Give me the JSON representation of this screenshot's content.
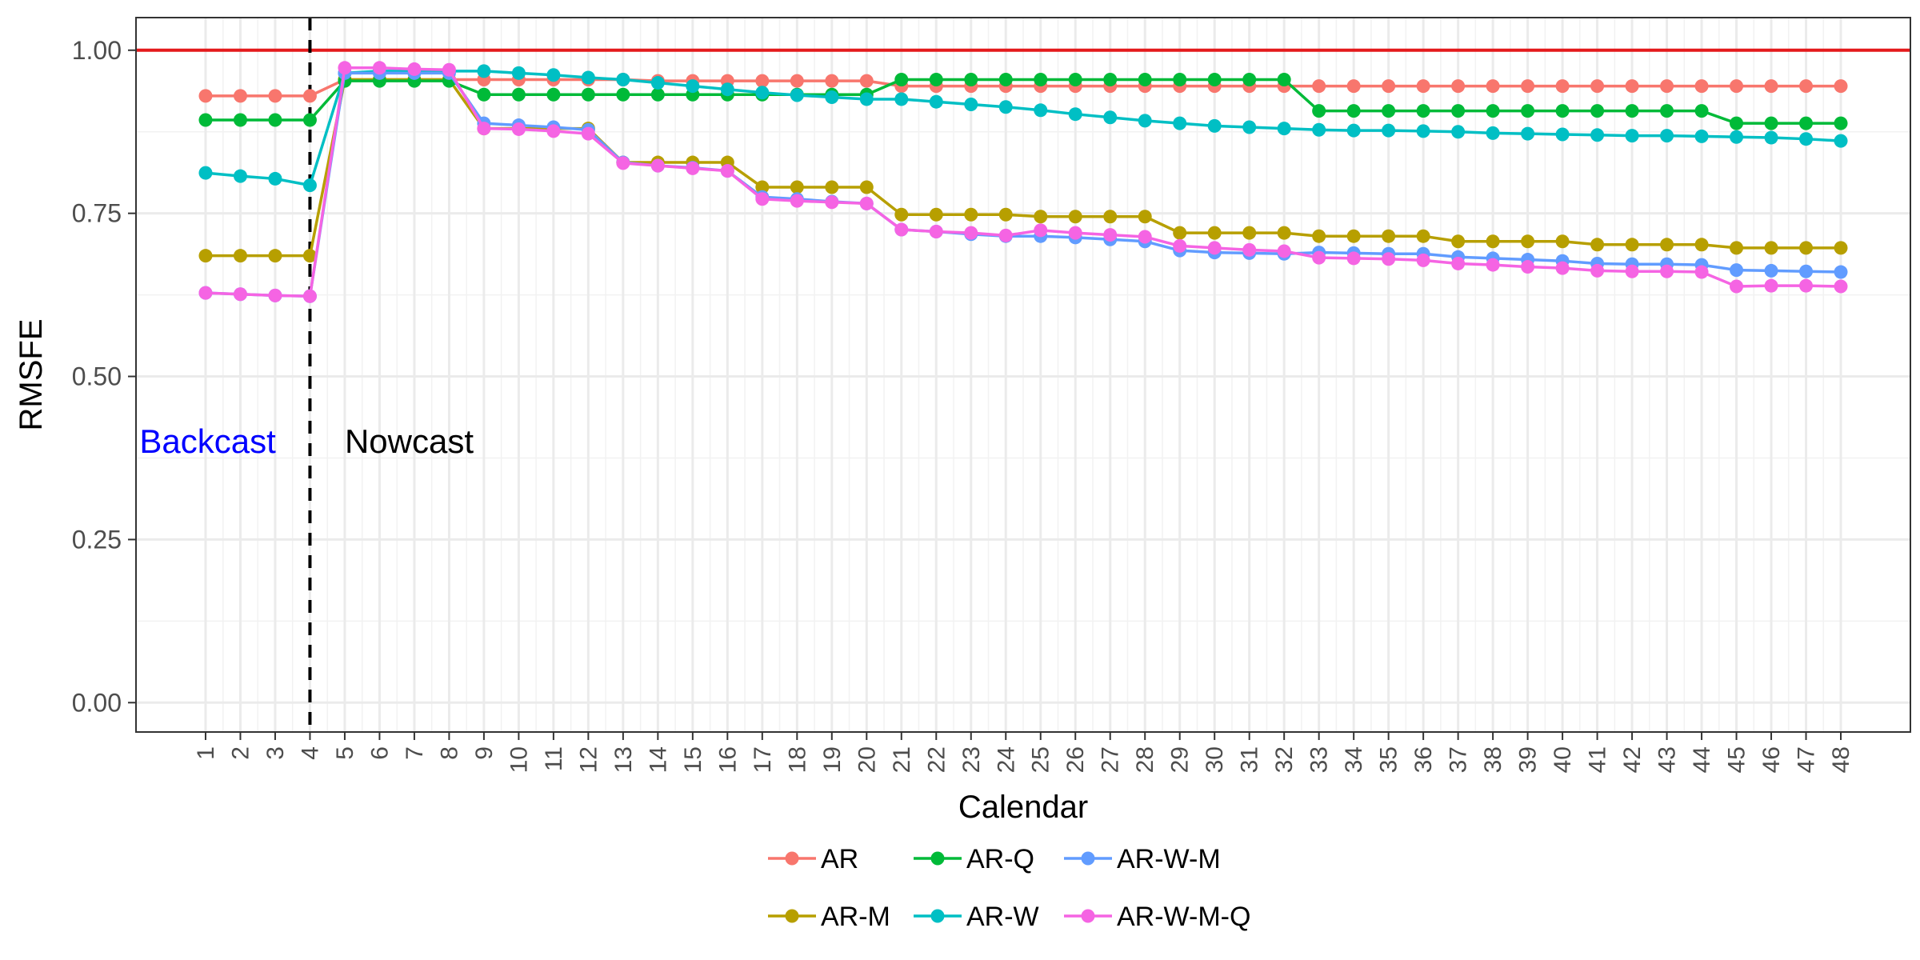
{
  "chart_data": {
    "type": "line",
    "xlabel": "Calendar",
    "ylabel": "RMSFE",
    "x": [
      1,
      2,
      3,
      4,
      5,
      6,
      7,
      8,
      9,
      10,
      11,
      12,
      13,
      14,
      15,
      16,
      17,
      18,
      19,
      20,
      21,
      22,
      23,
      24,
      25,
      26,
      27,
      28,
      29,
      30,
      31,
      32,
      33,
      34,
      35,
      36,
      37,
      38,
      39,
      40,
      41,
      42,
      43,
      44,
      45,
      46,
      47,
      48
    ],
    "xlim": [
      -1,
      50
    ],
    "ylim": [
      -0.045,
      1.05
    ],
    "yticks": [
      0.0,
      0.25,
      0.5,
      0.75,
      1.0
    ],
    "ytick_labels": [
      "0.00",
      "0.25",
      "0.50",
      "0.75",
      "1.00"
    ],
    "grid": true,
    "reference_line": {
      "y": 1.0,
      "color": "#e41a1c"
    },
    "divider": {
      "x": 4,
      "style": "dashed",
      "color": "#000000"
    },
    "annotations": [
      {
        "text": "Backcast",
        "color": "#0000ff",
        "x": -0.9,
        "y": 0.4
      },
      {
        "text": "Nowcast",
        "color": "#000000",
        "x": 5.0,
        "y": 0.4
      }
    ],
    "legend_position": "bottom",
    "series": [
      {
        "name": "AR",
        "color": "#F8766D",
        "values": [
          0.93,
          0.93,
          0.93,
          0.93,
          0.955,
          0.955,
          0.955,
          0.955,
          0.955,
          0.955,
          0.955,
          0.955,
          0.955,
          0.953,
          0.953,
          0.953,
          0.953,
          0.953,
          0.953,
          0.953,
          0.945,
          0.945,
          0.945,
          0.945,
          0.945,
          0.945,
          0.945,
          0.945,
          0.945,
          0.945,
          0.945,
          0.945,
          0.945,
          0.945,
          0.945,
          0.945,
          0.945,
          0.945,
          0.945,
          0.945,
          0.945,
          0.945,
          0.945,
          0.945,
          0.945,
          0.945,
          0.945,
          0.945
        ]
      },
      {
        "name": "AR-M",
        "color": "#B79F00",
        "values": [
          0.685,
          0.685,
          0.685,
          0.685,
          0.955,
          0.955,
          0.955,
          0.955,
          0.88,
          0.88,
          0.88,
          0.88,
          0.828,
          0.828,
          0.828,
          0.828,
          0.79,
          0.79,
          0.79,
          0.79,
          0.748,
          0.748,
          0.748,
          0.748,
          0.745,
          0.745,
          0.745,
          0.745,
          0.72,
          0.72,
          0.72,
          0.72,
          0.715,
          0.715,
          0.715,
          0.715,
          0.707,
          0.707,
          0.707,
          0.707,
          0.702,
          0.702,
          0.702,
          0.702,
          0.697,
          0.697,
          0.697,
          0.697
        ]
      },
      {
        "name": "AR-Q",
        "color": "#00BA38",
        "values": [
          0.893,
          0.893,
          0.893,
          0.893,
          0.953,
          0.953,
          0.953,
          0.953,
          0.932,
          0.932,
          0.932,
          0.932,
          0.932,
          0.932,
          0.932,
          0.932,
          0.932,
          0.932,
          0.932,
          0.932,
          0.955,
          0.955,
          0.955,
          0.955,
          0.955,
          0.955,
          0.955,
          0.955,
          0.955,
          0.955,
          0.955,
          0.955,
          0.907,
          0.907,
          0.907,
          0.907,
          0.907,
          0.907,
          0.907,
          0.907,
          0.907,
          0.907,
          0.907,
          0.907,
          0.888,
          0.888,
          0.888,
          0.888
        ]
      },
      {
        "name": "AR-W",
        "color": "#00BFC4",
        "values": [
          0.812,
          0.807,
          0.803,
          0.793,
          0.965,
          0.968,
          0.968,
          0.968,
          0.968,
          0.965,
          0.962,
          0.958,
          0.955,
          0.95,
          0.945,
          0.94,
          0.935,
          0.931,
          0.928,
          0.925,
          0.925,
          0.921,
          0.917,
          0.913,
          0.908,
          0.902,
          0.897,
          0.892,
          0.888,
          0.884,
          0.882,
          0.88,
          0.878,
          0.877,
          0.877,
          0.876,
          0.875,
          0.873,
          0.872,
          0.871,
          0.87,
          0.869,
          0.869,
          0.868,
          0.867,
          0.866,
          0.864,
          0.861
        ]
      },
      {
        "name": "AR-W-M",
        "color": "#619CFF",
        "values": [
          0.628,
          0.626,
          0.624,
          0.623,
          0.965,
          0.965,
          0.965,
          0.965,
          0.888,
          0.885,
          0.882,
          0.878,
          0.828,
          0.823,
          0.82,
          0.815,
          0.775,
          0.772,
          0.768,
          0.765,
          0.725,
          0.722,
          0.718,
          0.715,
          0.715,
          0.713,
          0.71,
          0.707,
          0.693,
          0.69,
          0.689,
          0.688,
          0.69,
          0.689,
          0.688,
          0.688,
          0.683,
          0.681,
          0.679,
          0.677,
          0.673,
          0.672,
          0.672,
          0.671,
          0.663,
          0.662,
          0.661,
          0.66
        ]
      },
      {
        "name": "AR-W-M-Q",
        "color": "#F564E3",
        "values": [
          0.628,
          0.626,
          0.624,
          0.623,
          0.973,
          0.973,
          0.971,
          0.97,
          0.88,
          0.879,
          0.876,
          0.872,
          0.827,
          0.823,
          0.819,
          0.815,
          0.772,
          0.769,
          0.767,
          0.765,
          0.725,
          0.722,
          0.72,
          0.716,
          0.724,
          0.72,
          0.717,
          0.714,
          0.7,
          0.697,
          0.694,
          0.692,
          0.682,
          0.681,
          0.68,
          0.678,
          0.673,
          0.671,
          0.668,
          0.666,
          0.662,
          0.661,
          0.661,
          0.66,
          0.638,
          0.639,
          0.639,
          0.638
        ]
      }
    ]
  }
}
